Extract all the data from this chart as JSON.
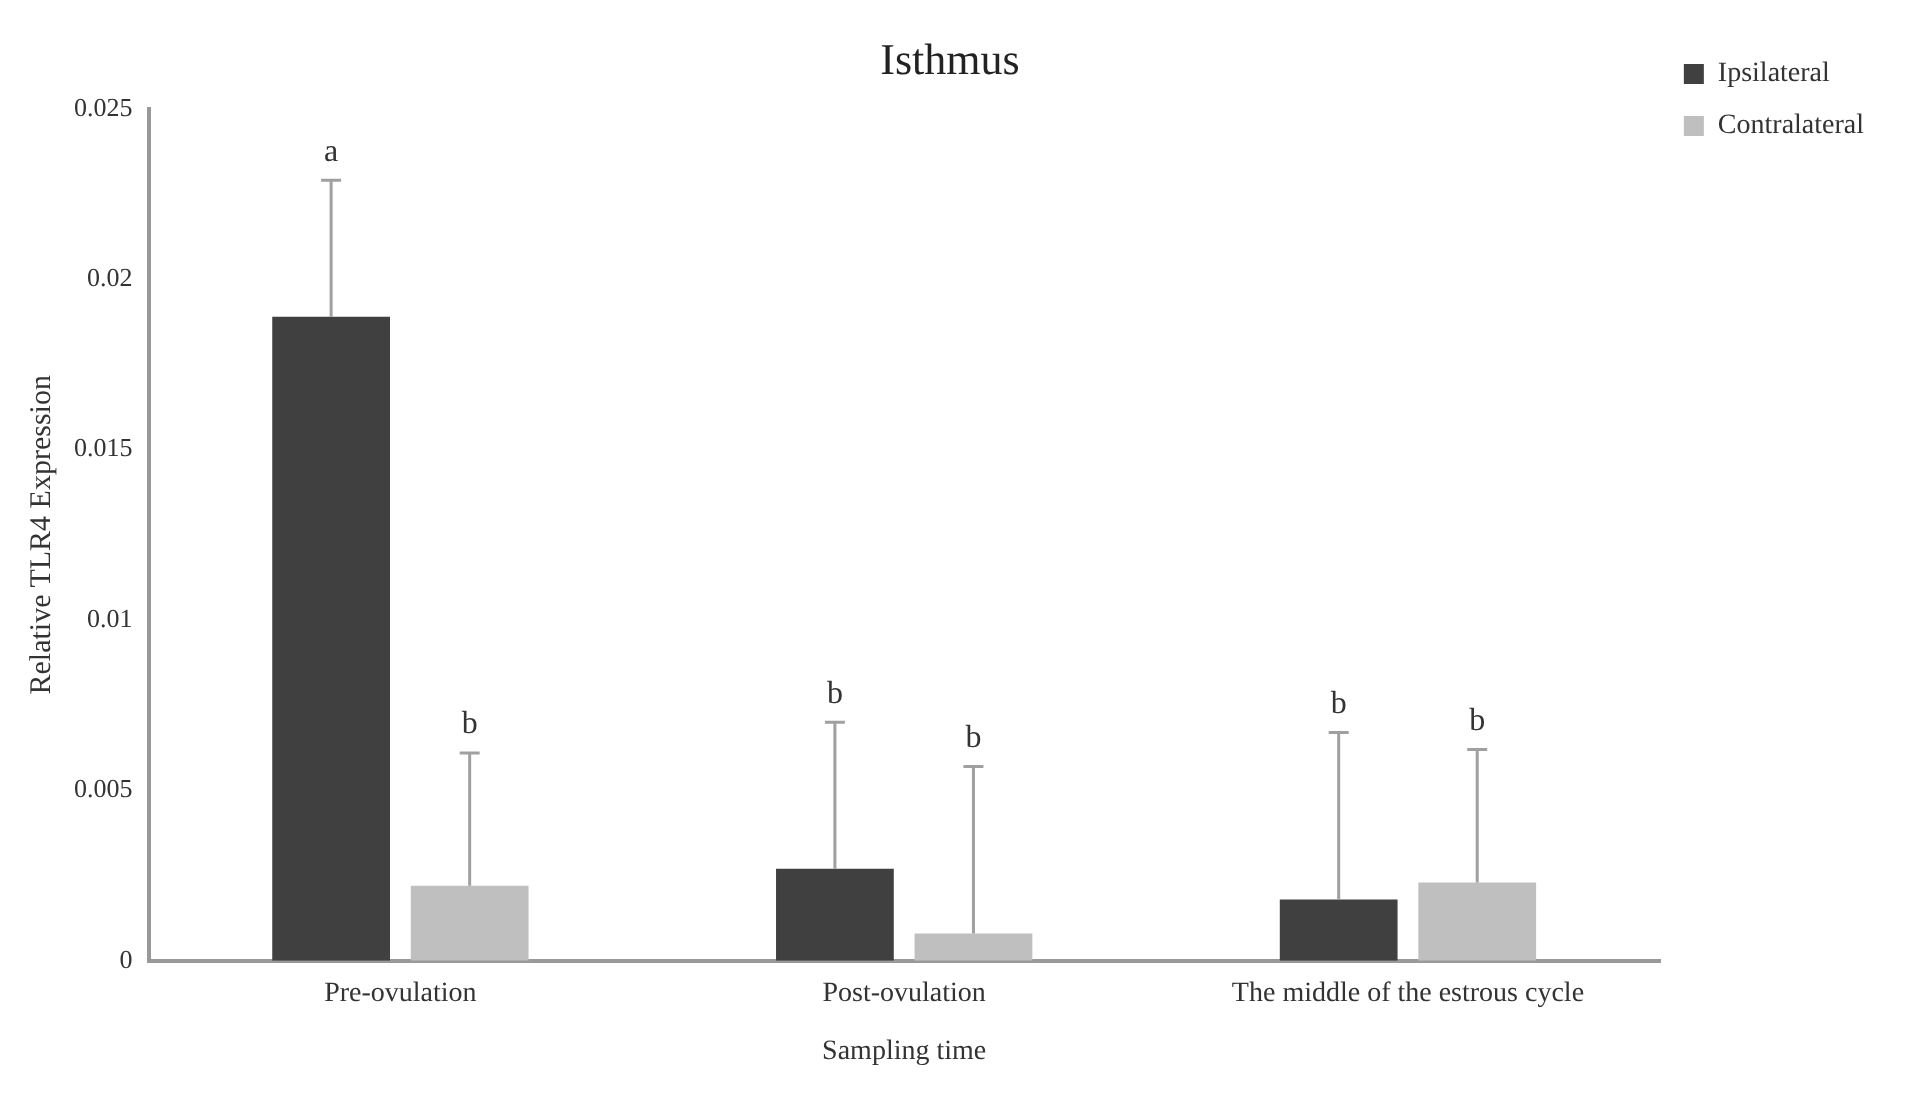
{
  "chart_data": {
    "type": "bar",
    "title": "Isthmus",
    "xlabel": "Sampling time",
    "ylabel": "Relative TLR4 Expression",
    "categories": [
      "Pre-ovulation",
      "Post-ovulation",
      "The middle of the estrous cycle"
    ],
    "series": [
      {
        "name": "Ipsilateral",
        "color": "#404040",
        "values": [
          0.0189,
          0.0027,
          0.0018
        ],
        "errors": [
          [
            0.0189,
            0.0229
          ],
          [
            0.0027,
            0.007
          ],
          [
            0.0018,
            0.0067
          ]
        ]
      },
      {
        "name": "Contralateral",
        "color": "#bfbfbf",
        "values": [
          0.0022,
          0.0008,
          0.0023
        ],
        "errors": [
          [
            0.0022,
            0.0061
          ],
          [
            0.0008,
            0.0057
          ],
          [
            0.0023,
            0.0062
          ]
        ]
      }
    ],
    "ylim": [
      0,
      0.025
    ],
    "yticks": [
      0,
      0.005,
      0.01,
      0.015,
      0.02,
      0.025
    ],
    "grid": false,
    "legend": "top right",
    "annotations": [
      "a",
      "b",
      "b",
      "b",
      "b",
      "b"
    ]
  }
}
